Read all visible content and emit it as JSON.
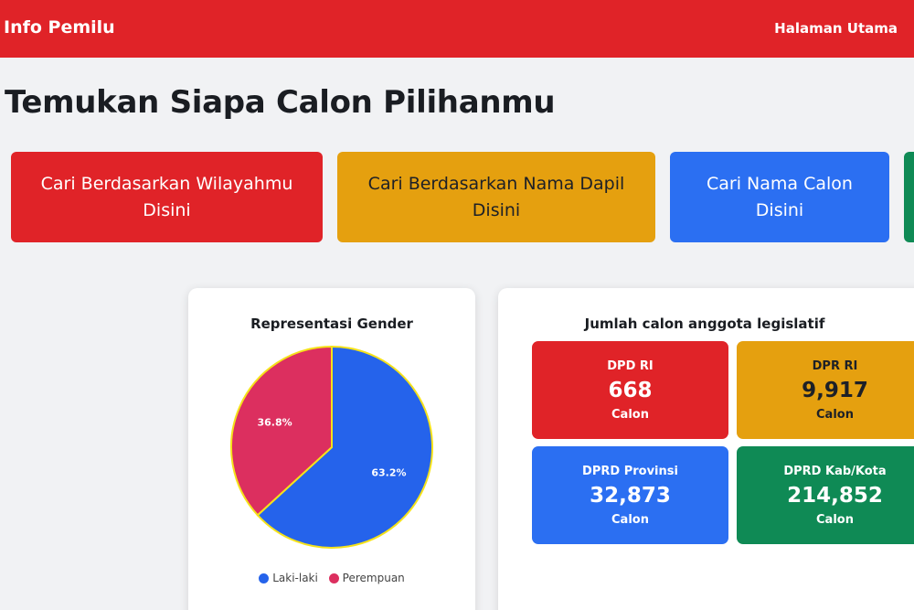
{
  "navbar": {
    "brand": "Info Pemilu",
    "home_link": "Halaman Utama",
    "bg_color": "#e02328"
  },
  "page": {
    "title": "Temukan Siapa Calon Pilihanmu"
  },
  "search_buttons": [
    {
      "line1": "Cari Berdasarkan Wilayahmu",
      "line2": "Disini",
      "color": "#e02328"
    },
    {
      "line1": "Cari Berdasarkan Nama Dapil",
      "line2": "Disini",
      "color": "#e5a00f"
    },
    {
      "line1": "Cari Nama Calon",
      "line2": "Disini",
      "color": "#2b6ff2"
    },
    {
      "line1": "",
      "line2": "",
      "color": "#0f8a55"
    }
  ],
  "gender_card": {
    "title": "Representasi Gender"
  },
  "chart_data": {
    "type": "pie",
    "title": "Representasi Gender",
    "series": [
      {
        "name": "Laki-laki",
        "value": 63.2,
        "label": "63.2%",
        "color": "#2563eb"
      },
      {
        "name": "Perempuan",
        "value": 36.8,
        "label": "36.8%",
        "color": "#dc2f5f"
      }
    ],
    "legend_position": "bottom"
  },
  "count_card": {
    "title": "Jumlah calon anggota legislatif",
    "stats": [
      {
        "label": "DPD RI",
        "value": "668",
        "unit": "Calon",
        "color": "#e02328"
      },
      {
        "label": "DPR RI",
        "value": "9,917",
        "unit": "Calon",
        "color": "#e5a00f"
      },
      {
        "label": "DPRD Provinsi",
        "value": "32,873",
        "unit": "Calon",
        "color": "#2b6ff2"
      },
      {
        "label": "DPRD Kab/Kota",
        "value": "214,852",
        "unit": "Calon",
        "color": "#0f8a55"
      }
    ]
  }
}
